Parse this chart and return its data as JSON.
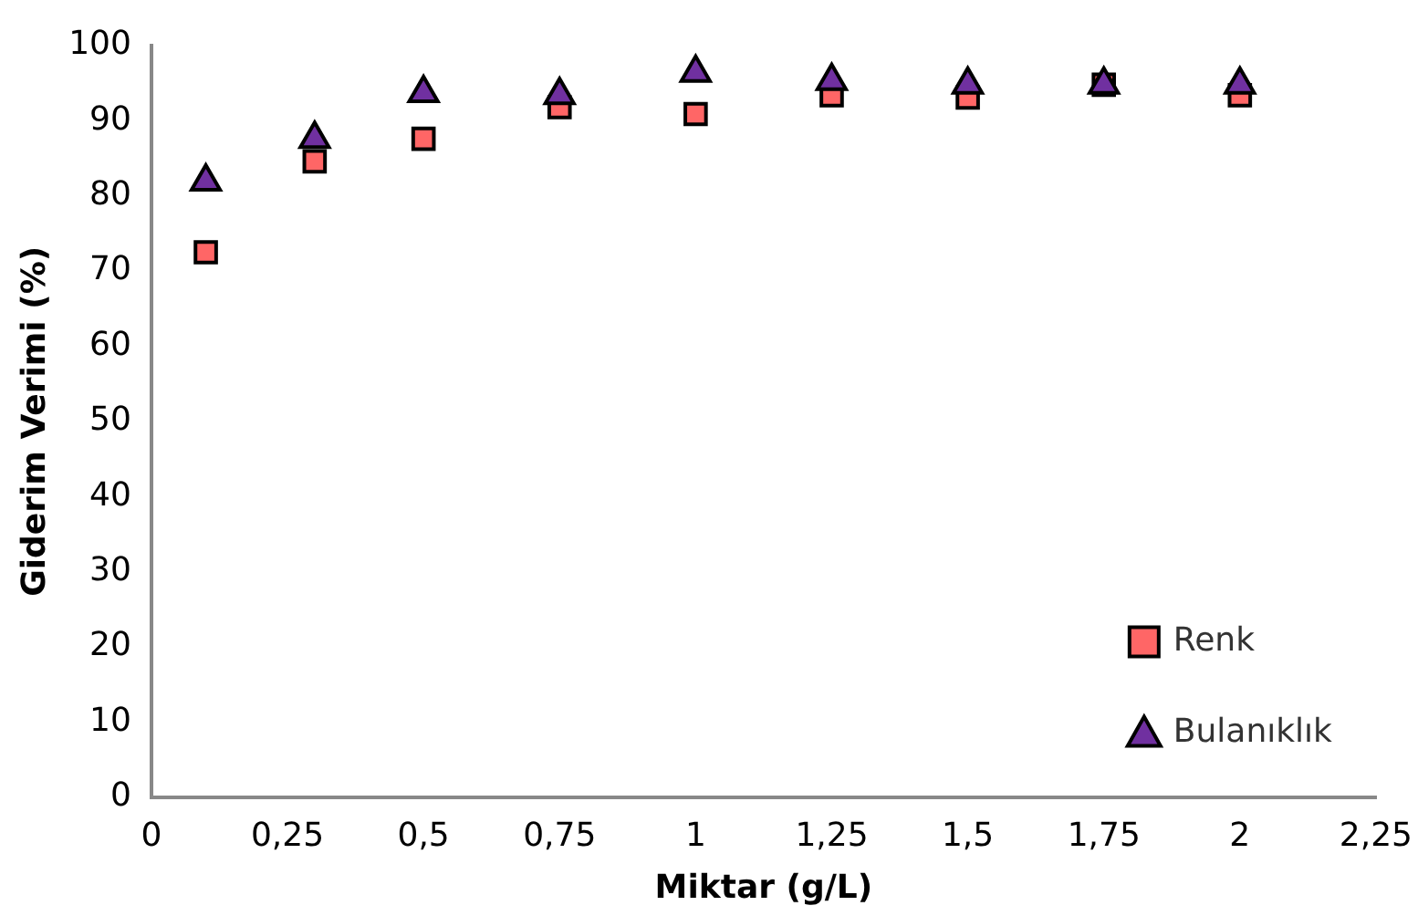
{
  "chart_data": {
    "type": "scatter",
    "xlabel": "Miktar (g/L)",
    "ylabel": "Giderim Verimi (%)",
    "x": [
      0.1,
      0.3,
      0.5,
      0.75,
      1,
      1.25,
      1.5,
      1.75,
      2
    ],
    "series": [
      {
        "name": "Renk",
        "color": "#ff6666",
        "marker": "square",
        "values": [
          72.5,
          84.6,
          87.6,
          91.8,
          90.9,
          93.4,
          93.1,
          94.8,
          93.4
        ]
      },
      {
        "name": "Bulanıklık",
        "color": "#7030a0",
        "marker": "triangle",
        "values": [
          81.9,
          87.6,
          93.7,
          93.4,
          96.4,
          95.3,
          94.8,
          94.8,
          94.8
        ]
      }
    ],
    "xlim": [
      0,
      2.25
    ],
    "xticks": [
      0,
      {
        "value": 0.25,
        "label": "0,25"
      },
      {
        "value": 0.5,
        "label": "0,5"
      },
      {
        "value": 0.75,
        "label": "0,75"
      },
      1,
      {
        "value": 1.25,
        "label": "1,25"
      },
      {
        "value": 1.5,
        "label": "1,5"
      },
      {
        "value": 1.75,
        "label": "1,75"
      },
      2,
      {
        "value": 2.25,
        "label": "2,25"
      }
    ],
    "ylim": [
      0,
      100
    ],
    "yticks": [
      0,
      10,
      20,
      30,
      40,
      50,
      60,
      70,
      80,
      90,
      100
    ],
    "grid": false,
    "legend": "bottom right"
  }
}
